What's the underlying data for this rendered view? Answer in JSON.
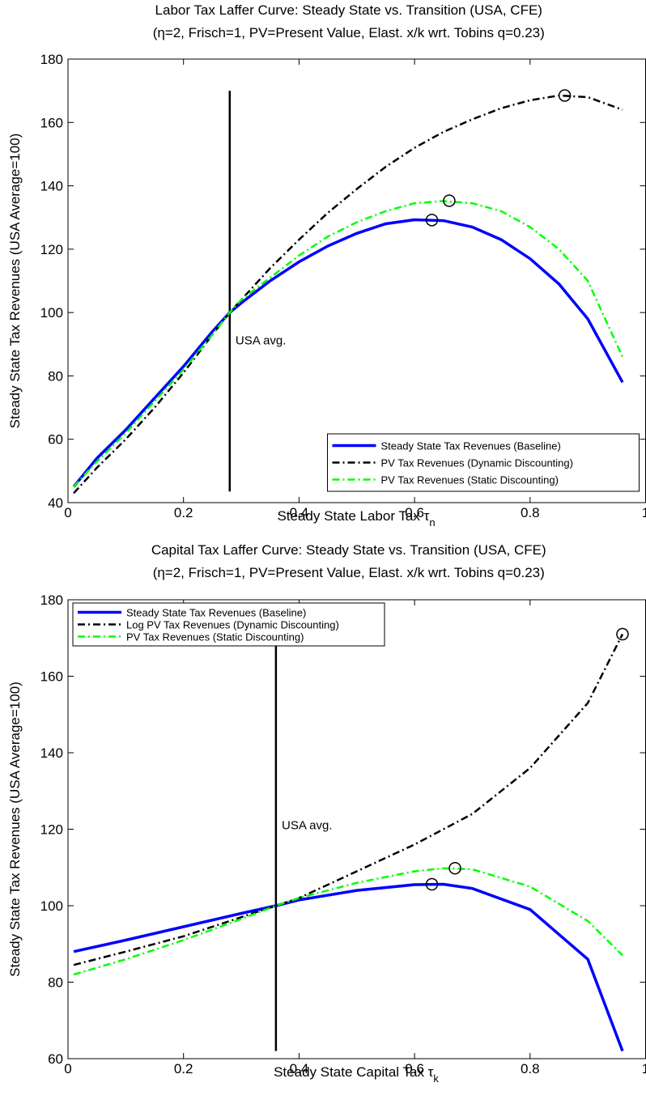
{
  "chart_data": [
    {
      "type": "line",
      "title": [
        "Labor Tax Laffer Curve: Steady State vs. Transition (USA, CFE)",
        "(η=2, Frisch=1, PV=Present Value, Elast. x/k wrt. Tobins q=0.23)"
      ],
      "xlabel": "Steady State Labor Tax τ",
      "xlabel_sub": "n",
      "ylabel": "Steady State Tax Revenues (USA Average=100)",
      "x": [
        0.01,
        0.05,
        0.1,
        0.15,
        0.2,
        0.25,
        0.28,
        0.3,
        0.35,
        0.4,
        0.45,
        0.5,
        0.55,
        0.6,
        0.65,
        0.7,
        0.75,
        0.8,
        0.85,
        0.9,
        0.96
      ],
      "series": [
        {
          "name": "Steady State Tax Revenues (Baseline)",
          "color": "#0000ff",
          "style": "solid",
          "values": [
            45,
            54,
            63,
            73,
            83,
            94,
            100,
            103,
            110,
            116,
            121,
            125,
            128,
            129.3,
            129,
            127,
            123,
            117,
            109,
            98,
            78
          ]
        },
        {
          "name": "PV Tax Revenues (Dynamic Discounting)",
          "color": "#000000",
          "style": "dashdot",
          "values": [
            43,
            51,
            60,
            70,
            81,
            93,
            100,
            104,
            114,
            123,
            131.5,
            139,
            146,
            152,
            157,
            161,
            164.5,
            167,
            168.5,
            168,
            164
          ]
        },
        {
          "name": "PV Tax Revenues (Static Discounting)",
          "color": "#00ff00",
          "style": "dashdot",
          "values": [
            45,
            53,
            62,
            72,
            82,
            93,
            100,
            104,
            111,
            118,
            124,
            128.5,
            132,
            134.5,
            135.2,
            134.5,
            132,
            127,
            120,
            110,
            86
          ]
        }
      ],
      "markers": [
        {
          "x": 0.63,
          "y": 129.2
        },
        {
          "x": 0.66,
          "y": 135.3
        },
        {
          "x": 0.86,
          "y": 168.5
        }
      ],
      "vline": {
        "x": 0.28,
        "y": [
          43.5,
          170
        ]
      },
      "annotation": {
        "text": "USA avg.",
        "x": 0.29,
        "y": 90
      },
      "xlim": [
        0,
        1
      ],
      "ylim": [
        40,
        180
      ],
      "xticks": [
        0,
        0.2,
        0.4,
        0.6,
        0.8,
        1
      ],
      "yticks": [
        40,
        60,
        80,
        100,
        120,
        140,
        160,
        180
      ],
      "legend": "lower right"
    },
    {
      "type": "line",
      "title": [
        "Capital Tax Laffer Curve: Steady State vs. Transition (USA, CFE)",
        "(η=2, Frisch=1, PV=Present Value, Elast. x/k wrt. Tobins q=0.23)"
      ],
      "xlabel": "Steady State Capital Tax τ",
      "xlabel_sub": "k",
      "ylabel": "Steady State Tax Revenues (USA Average=100)",
      "x": [
        0.01,
        0.1,
        0.2,
        0.3,
        0.36,
        0.4,
        0.5,
        0.6,
        0.65,
        0.7,
        0.8,
        0.9,
        0.96
      ],
      "series": [
        {
          "name": "Steady State Tax Revenues (Baseline)",
          "color": "#0000ff",
          "style": "solid",
          "values": [
            88,
            91,
            94.5,
            98,
            100,
            101.5,
            104,
            105.5,
            105.6,
            104.5,
            99,
            86,
            62
          ]
        },
        {
          "name": "Log PV Tax Revenues (Dynamic Discounting)",
          "color": "#000000",
          "style": "dashdot",
          "values": [
            84.5,
            88,
            92,
            97,
            100,
            102,
            109,
            116,
            120,
            124,
            136,
            153,
            171
          ]
        },
        {
          "name": "PV Tax Revenues (Static Discounting)",
          "color": "#00ff00",
          "style": "dashdot",
          "values": [
            82,
            86,
            91,
            96.5,
            100,
            102,
            106,
            109,
            109.8,
            109.5,
            105,
            96,
            87
          ]
        }
      ],
      "markers": [
        {
          "x": 0.63,
          "y": 105.6
        },
        {
          "x": 0.67,
          "y": 109.8
        },
        {
          "x": 0.96,
          "y": 171
        }
      ],
      "vline": {
        "x": 0.36,
        "y": [
          62,
          172
        ]
      },
      "annotation": {
        "text": "USA avg.",
        "x": 0.37,
        "y": 120
      },
      "xlim": [
        0,
        1
      ],
      "ylim": [
        60,
        180
      ],
      "xticks": [
        0,
        0.2,
        0.4,
        0.6,
        0.8,
        1
      ],
      "yticks": [
        60,
        80,
        100,
        120,
        140,
        160,
        180
      ],
      "legend": "upper left"
    }
  ]
}
